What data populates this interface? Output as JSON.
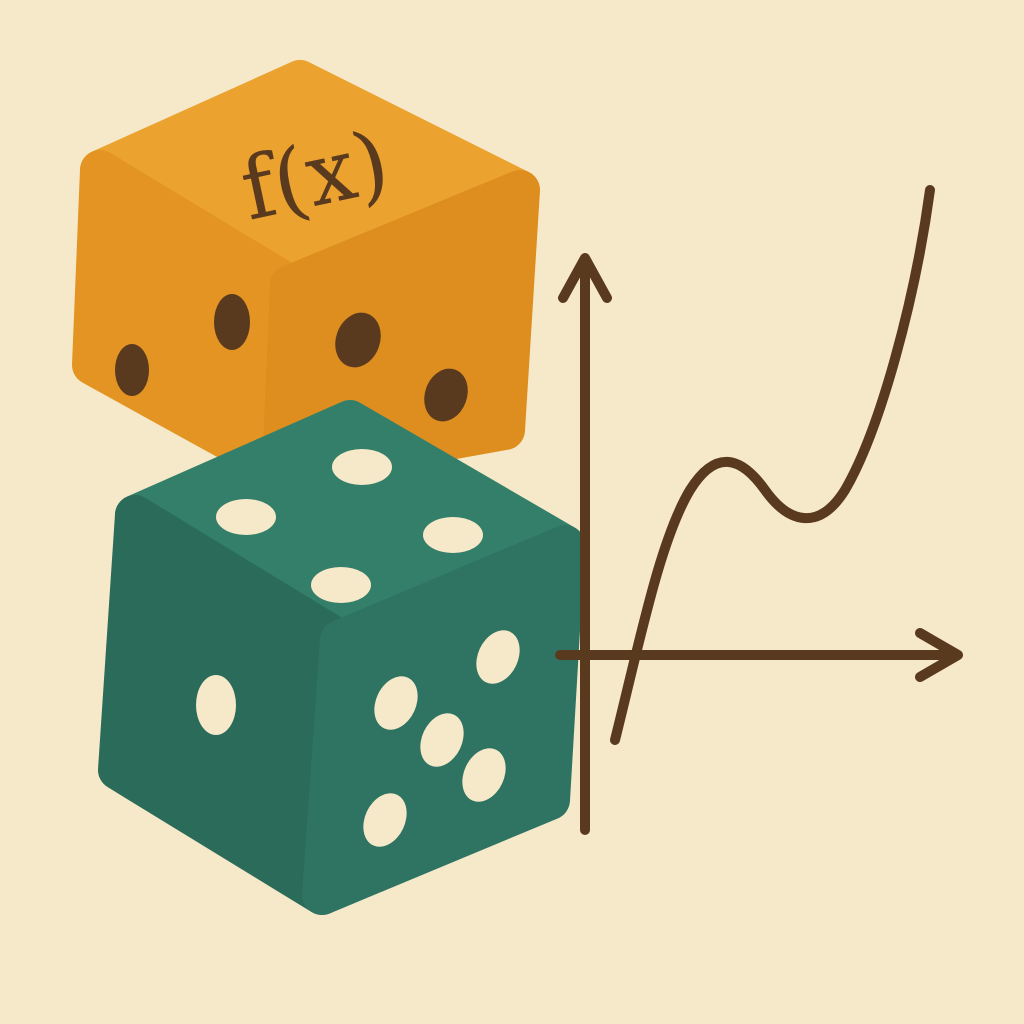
{
  "die": {
    "label": "f(x)"
  }
}
